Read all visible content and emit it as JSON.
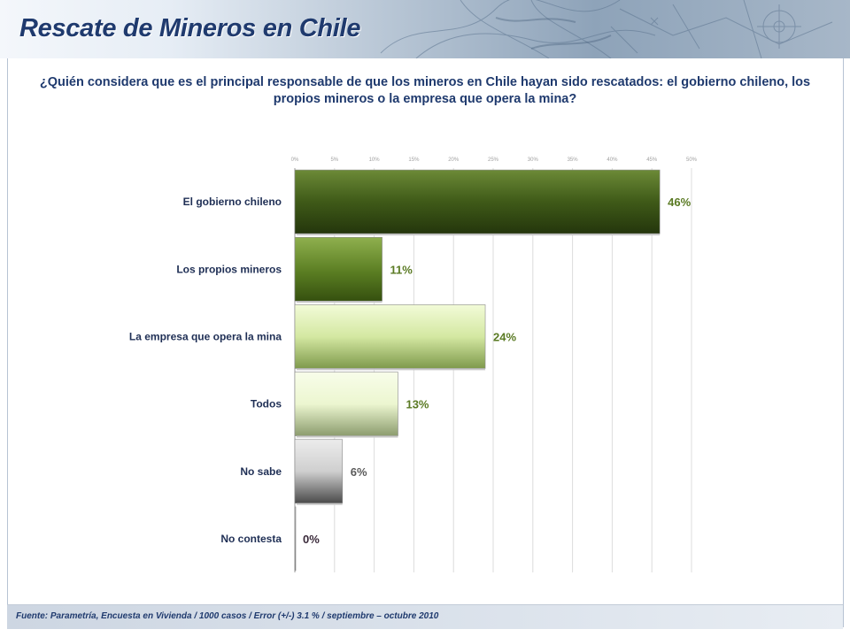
{
  "header": {
    "title": "Rescate de Mineros en Chile"
  },
  "question": "¿Quién considera que es el principal responsable de que los mineros en Chile hayan sido rescatados: el gobierno chileno, los propios mineros o la empresa que opera la mina?",
  "footer": {
    "source": "Fuente: Parametría, Encuesta en Vivienda / 1000 casos / Error (+/-) 3.1 % / septiembre – octubre 2010"
  },
  "colors": {
    "title": "#1f3a6e",
    "label_green": "#5a7a23",
    "label_gray": "#5a5a5a",
    "label_dark": "#3a2a3a"
  },
  "chart_data": {
    "type": "bar",
    "orientation": "horizontal",
    "categories": [
      "El gobierno chileno",
      "Los propios mineros",
      "La empresa que opera la mina",
      "Todos",
      "No sabe",
      "No contesta"
    ],
    "values": [
      46,
      11,
      24,
      13,
      6,
      0
    ],
    "value_labels": [
      "46%",
      "11%",
      "24%",
      "13%",
      "6%",
      "0%"
    ],
    "xlim": [
      0,
      50
    ],
    "ticks": [
      0,
      5,
      10,
      15,
      20,
      25,
      30,
      35,
      40,
      45,
      50
    ],
    "tick_labels": [
      "0%",
      "5%",
      "10%",
      "15%",
      "20%",
      "25%",
      "30%",
      "35%",
      "40%",
      "45%",
      "50%"
    ],
    "grid": true
  }
}
